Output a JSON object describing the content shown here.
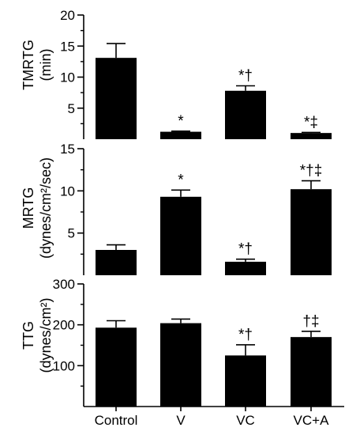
{
  "chart_data": [
    {
      "type": "bar",
      "ylabel_line1": "TMRTG",
      "ylabel_line2": "(min)",
      "ylim": [
        0,
        20
      ],
      "yticks": [
        5,
        10,
        15,
        20
      ],
      "ytick_labels": [
        "5",
        "10",
        "15",
        "20"
      ],
      "categories": [
        "Control",
        "V",
        "VC",
        "VC+A"
      ],
      "values": [
        13.1,
        1.2,
        7.8,
        1.0
      ],
      "errors": [
        2.3,
        0.1,
        0.8,
        0.1
      ],
      "annotations": [
        "",
        "*",
        "*†",
        "*‡"
      ]
    },
    {
      "type": "bar",
      "ylabel_line1": "MRTG",
      "ylabel_line2": "(dynes/cm²/sec)",
      "ylim": [
        0,
        15
      ],
      "yticks": [
        5,
        10,
        15
      ],
      "ytick_labels": [
        "5",
        "10",
        "15"
      ],
      "categories": [
        "Control",
        "V",
        "VC",
        "VC+A"
      ],
      "values": [
        3.0,
        9.3,
        1.6,
        10.2
      ],
      "errors": [
        0.6,
        0.8,
        0.3,
        1.0
      ],
      "annotations": [
        "",
        "*",
        "*†",
        "*†‡"
      ]
    },
    {
      "type": "bar",
      "ylabel_line1": "TTG",
      "ylabel_line2": "(dynes/cm²)",
      "ylim": [
        0,
        300
      ],
      "yticks": [
        100,
        200,
        300
      ],
      "ytick_labels": [
        "100",
        "200",
        "300"
      ],
      "categories": [
        "Control",
        "V",
        "VC",
        "VC+A"
      ],
      "values": [
        193,
        204,
        125,
        170
      ],
      "errors": [
        17,
        10,
        26,
        14
      ],
      "annotations": [
        "",
        "",
        "*†",
        "†‡"
      ]
    }
  ],
  "x_categories": [
    "Control",
    "V",
    "VC",
    "VC+A"
  ],
  "colors": {
    "bar": "#000000",
    "axis": "#000000",
    "background": "#ffffff"
  }
}
